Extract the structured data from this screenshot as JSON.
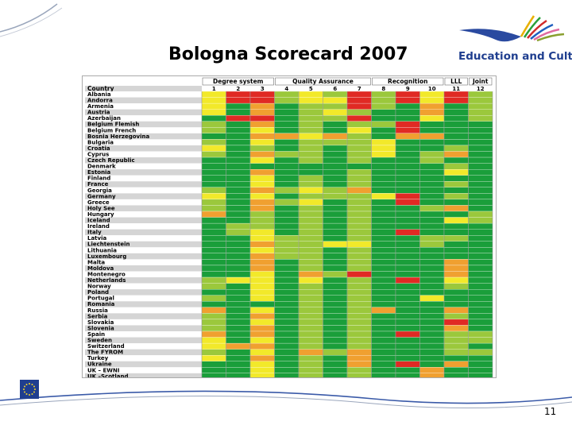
{
  "slide": {
    "title": "Bologna Scorecard 2007",
    "page_number": "11",
    "logo_text": "Education and Culture"
  },
  "scorecard": {
    "country_header": "Country",
    "groups": [
      {
        "label": "Degree system",
        "columns": [
          "1",
          "2",
          "3"
        ]
      },
      {
        "label": "Quality Assurance",
        "columns": [
          "4",
          "5",
          "6",
          "7"
        ]
      },
      {
        "label": "Recognition",
        "columns": [
          "8",
          "9",
          "10"
        ]
      },
      {
        "label": "LLL",
        "columns": [
          "11"
        ]
      },
      {
        "label": "Joint",
        "columns": [
          "12"
        ]
      }
    ],
    "legend_colors": {
      "G": "#1a9e3a",
      "L": "#9bc83c",
      "Y": "#f2e92a",
      "O": "#f0a030",
      "R": "#e02a24"
    },
    "countries": [
      {
        "name": "Albania",
        "scores": "YRRLYLRLRYRL"
      },
      {
        "name": "Andorra",
        "scores": "YRRLYYRLRYRL"
      },
      {
        "name": "Armenia",
        "scores": "YGOGLLRLGOGL"
      },
      {
        "name": "Austria",
        "scores": "YGOGLYLGGOGL"
      },
      {
        "name": "Azerbaijan",
        "scores": "GRRGLLRGGYGL"
      },
      {
        "name": "Belgium Flemish",
        "scores": "LGOGLGLLRGGG"
      },
      {
        "name": "Belgium French",
        "scores": "LGYGLGYGRGGG"
      },
      {
        "name": "Bosnia Herzegovina",
        "scores": "GGOOYOLGOOGG"
      },
      {
        "name": "Bulgaria",
        "scores": "LGYGLLLYGGGG"
      },
      {
        "name": "Croatia",
        "scores": "YGLGLGLYGGLG"
      },
      {
        "name": "Cyprus",
        "scores": "LGOLLGLYGLOG"
      },
      {
        "name": "Czech Republic",
        "scores": "GGYGLGLGGLGG"
      },
      {
        "name": "Denmark",
        "scores": "GGGGGGGGGGLG"
      },
      {
        "name": "Estonia",
        "scores": "GGOGGGLGGGYG"
      },
      {
        "name": "Finland",
        "scores": "GGYGLGLGGGGG"
      },
      {
        "name": "France",
        "scores": "GGYGLGLGGGLG"
      },
      {
        "name": "Georgia",
        "scores": "LGOLYLOGGGGG"
      },
      {
        "name": "Germany",
        "scores": "YGYGLLLYRGLG"
      },
      {
        "name": "Greece",
        "scores": "LGOLYGLGRGGG"
      },
      {
        "name": "Holy See",
        "scores": "LGOGLGLGGLOG"
      },
      {
        "name": "Hungary",
        "scores": "OGLGLGLGGGGL"
      },
      {
        "name": "Iceland",
        "scores": "GGLGLGLGGGYL"
      },
      {
        "name": "Ireland",
        "scores": "GLLGLGLGGGGG"
      },
      {
        "name": "Italy",
        "scores": "GLYGLGLGRGGG"
      },
      {
        "name": "Latvia",
        "scores": "GGYLLGLGGLLG"
      },
      {
        "name": "Liechtenstein",
        "scores": "GGOLLYYGGLGG"
      },
      {
        "name": "Lithuania",
        "scores": "GGYLLGLGGGGG"
      },
      {
        "name": "Luxembourg",
        "scores": "GGOLLGLGGGGG"
      },
      {
        "name": "Malta",
        "scores": "GGOGLGLGGGOG"
      },
      {
        "name": "Moldova",
        "scores": "GGOGLGLGGGOG"
      },
      {
        "name": "Montenegro",
        "scores": "GGYGOLRGGGOG"
      },
      {
        "name": "Netherlands",
        "scores": "LYYGYGLGRGYG"
      },
      {
        "name": "Norway",
        "scores": "LGYGLGLGGGLG"
      },
      {
        "name": "Poland",
        "scores": "GGYGLGLGGGGG"
      },
      {
        "name": "Portugal",
        "scores": "LGYGLGLGGYGG"
      },
      {
        "name": "Romania",
        "scores": "GGGGLGLGGGGG"
      },
      {
        "name": "Russia",
        "scores": "OGYGLGLOGGOG"
      },
      {
        "name": "Serbia",
        "scores": "LGOGLGLGGGLG"
      },
      {
        "name": "Slovakia",
        "scores": "LGYGLGLGGGRG"
      },
      {
        "name": "Slovenia",
        "scores": "LGOGLGLGGGOG"
      },
      {
        "name": "Spain",
        "scores": "OGOGLGLGRGLL"
      },
      {
        "name": "Sweden",
        "scores": "YGYGLGLGGGLL"
      },
      {
        "name": "Switzerland",
        "scores": "YOOGLGLGGGLG"
      },
      {
        "name": "The FYROM",
        "scores": "LGYGOLOGGGLL"
      },
      {
        "name": "Turkey",
        "scores": "YGOGLGOGGGGG"
      },
      {
        "name": "Ukraine",
        "scores": "GGYGLGOGRGOG"
      },
      {
        "name": "UK – EWNI",
        "scores": "GGYGLGLGGOGG"
      },
      {
        "name": "UK –Scotland",
        "scores": "GGYGLGLGGOGG"
      }
    ]
  }
}
